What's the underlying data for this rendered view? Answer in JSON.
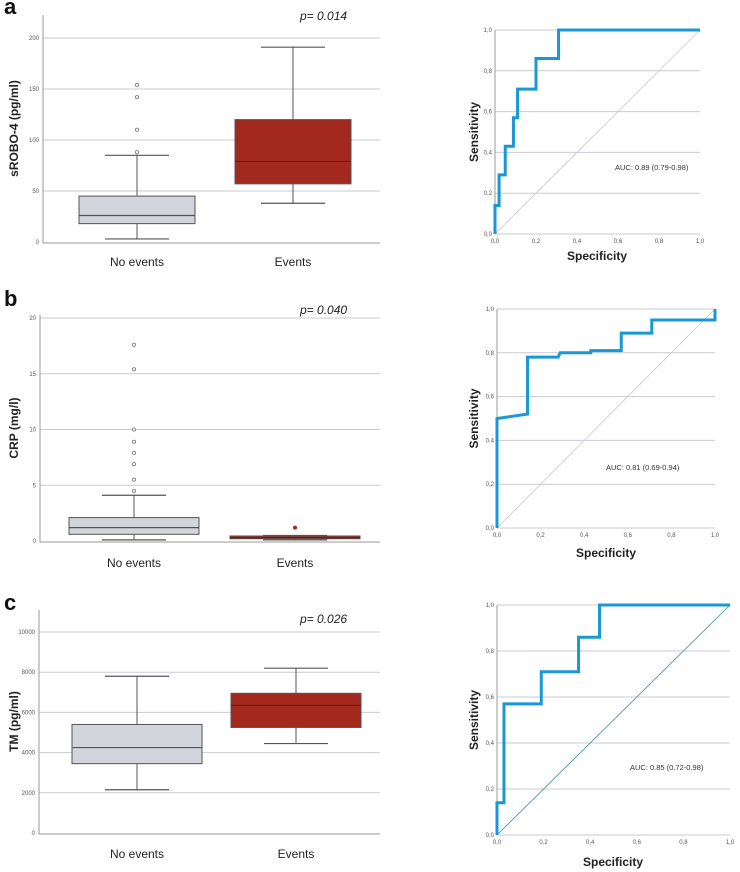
{
  "colors": {
    "no_events": "#d3d5dc",
    "events": "#a3281e",
    "roc": "#1a98d5",
    "grid": "#c9cbd2",
    "diag_light": "#c8c8d0",
    "diag_teal": "#3a8fa0"
  },
  "panel_labels": [
    "a",
    "b",
    "c"
  ],
  "chart_data": [
    {
      "type": "box",
      "panel": "a",
      "ylabel": "sROBO-4 (pg/ml)",
      "p_value": "p= 0.014",
      "ylim": [
        0,
        220
      ],
      "yticks": [
        "0",
        "50",
        "100",
        "150",
        "200"
      ],
      "ytick_values": [
        0,
        50,
        100,
        150,
        200
      ],
      "categories": [
        "No events",
        "Events"
      ],
      "boxes": [
        {
          "min": 3,
          "q1": 18,
          "median": 26,
          "q3": 45,
          "max": 85,
          "outliers": [
            88,
            110,
            142,
            154
          ]
        },
        {
          "min": 38,
          "q1": 57,
          "median": 79,
          "q3": 120,
          "max": 191,
          "outliers": []
        }
      ]
    },
    {
      "type": "line",
      "panel": "a",
      "subtype": "roc",
      "xlabel": "Specificity",
      "ylabel": "Sensitivity",
      "annotation": "AUC: 0.89 (0.79-0.98)",
      "ticks": [
        "0,0",
        "0,2",
        "0,4",
        "0,6",
        "0,8",
        "1,0"
      ],
      "tick_values": [
        0,
        0.2,
        0.4,
        0.6,
        0.8,
        1.0
      ],
      "diag": "light",
      "x": [
        0,
        0,
        0.02,
        0.02,
        0.05,
        0.05,
        0.09,
        0.09,
        0.11,
        0.11,
        0.2,
        0.2,
        0.31,
        0.31,
        1
      ],
      "y": [
        0,
        0.14,
        0.14,
        0.29,
        0.29,
        0.43,
        0.43,
        0.57,
        0.57,
        0.71,
        0.71,
        0.86,
        0.86,
        1,
        1
      ]
    },
    {
      "type": "box",
      "panel": "b",
      "ylabel": "CRP (mg/l)",
      "p_value": "p= 0.040",
      "ylim": [
        0,
        20
      ],
      "yticks": [
        "0",
        "5",
        "10",
        "15",
        "20"
      ],
      "ytick_values": [
        0,
        5,
        10,
        15,
        20
      ],
      "categories": [
        "No events",
        "Events"
      ],
      "boxes": [
        {
          "min": 0.1,
          "q1": 0.6,
          "median": 1.2,
          "q3": 2.1,
          "max": 4.1,
          "outliers": [
            4.5,
            5.5,
            6.9,
            7.9,
            8.9,
            10.0,
            15.4,
            17.6
          ]
        },
        {
          "min": 0.1,
          "q1": 0.2,
          "median": 0.3,
          "q3": 0.45,
          "max": 0.5,
          "outliers": [
            1.2
          ]
        }
      ]
    },
    {
      "type": "line",
      "panel": "b",
      "subtype": "roc",
      "xlabel": "Specificity",
      "ylabel": "Sensitivity",
      "annotation": "AUC: 0.81 (0.69-0.94)",
      "ticks": [
        "0,0",
        "0,2",
        "0,4",
        "0,6",
        "0,8",
        "1,0"
      ],
      "tick_values": [
        0,
        0.2,
        0.4,
        0.6,
        0.8,
        1.0
      ],
      "diag": "light",
      "x": [
        0,
        0,
        0.14,
        0.14,
        0.28,
        0.29,
        0.43,
        0.43,
        0.57,
        0.57,
        0.71,
        0.71,
        1,
        1
      ],
      "y": [
        0,
        0.5,
        0.52,
        0.78,
        0.78,
        0.8,
        0.8,
        0.81,
        0.81,
        0.89,
        0.89,
        0.95,
        0.95,
        1
      ]
    },
    {
      "type": "box",
      "panel": "c",
      "ylabel": "TM (pg/ml)",
      "p_value": "p= 0.026",
      "ylim": [
        0,
        11000
      ],
      "yticks": [
        "0",
        "2000",
        "4000",
        "6000",
        "8000",
        "10000"
      ],
      "ytick_values": [
        0,
        2000,
        4000,
        6000,
        8000,
        10000
      ],
      "categories": [
        "No events",
        "Events"
      ],
      "boxes": [
        {
          "min": 2150,
          "q1": 3450,
          "median": 4250,
          "q3": 5400,
          "max": 7800,
          "outliers": []
        },
        {
          "min": 4450,
          "q1": 5250,
          "median": 6350,
          "q3": 6950,
          "max": 8200,
          "outliers": []
        }
      ]
    },
    {
      "type": "line",
      "panel": "c",
      "subtype": "roc",
      "xlabel": "Specificity",
      "ylabel": "Sensitivity",
      "annotation": "AUC: 0.85 (0.72-0.98)",
      "ticks": [
        "0,0",
        "0,2",
        "0,4",
        "0,6",
        "0,8",
        "1,0"
      ],
      "tick_values": [
        0,
        0.2,
        0.4,
        0.6,
        0.8,
        1.0
      ],
      "diag": "teal",
      "x": [
        0,
        0,
        0.03,
        0.03,
        0.19,
        0.19,
        0.35,
        0.35,
        0.44,
        0.44,
        1
      ],
      "y": [
        0,
        0.14,
        0.14,
        0.57,
        0.57,
        0.71,
        0.71,
        0.86,
        0.86,
        1,
        1
      ]
    }
  ]
}
